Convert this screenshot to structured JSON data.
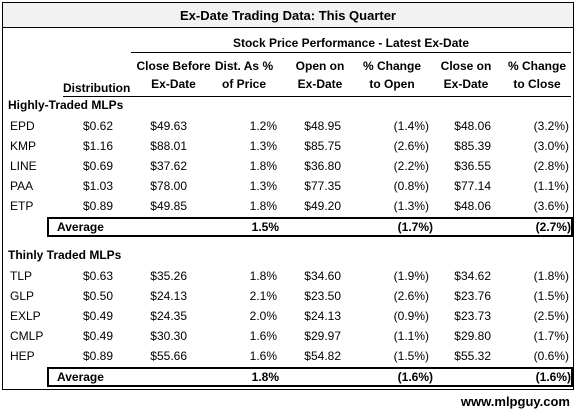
{
  "title": "Ex-Date Trading Data: This Quarter",
  "span_header": "Stock Price Performance - Latest Ex-Date",
  "columns": {
    "distribution": [
      "",
      "Distribution"
    ],
    "close_before": [
      "Close Before",
      "Ex-Date"
    ],
    "dist_pct": [
      "Dist. As %",
      "of Price"
    ],
    "open_on": [
      "Open on",
      "Ex-Date"
    ],
    "pct_open": [
      "% Change",
      "to Open"
    ],
    "close_on": [
      "Close on",
      "Ex-Date"
    ],
    "pct_close": [
      "% Change",
      "to Close"
    ]
  },
  "sections": [
    {
      "label": "Highly-Traded MLPs",
      "rows": [
        {
          "ticker": "EPD",
          "dist": "$0.62",
          "close_before": "$49.63",
          "dist_pct": "1.2%",
          "open": "$48.95",
          "pct_open": "(1.4%)",
          "close_on": "$48.06",
          "pct_close": "(3.2%)"
        },
        {
          "ticker": "KMP",
          "dist": "$1.16",
          "close_before": "$88.01",
          "dist_pct": "1.3%",
          "open": "$85.75",
          "pct_open": "(2.6%)",
          "close_on": "$85.39",
          "pct_close": "(3.0%)"
        },
        {
          "ticker": "LINE",
          "dist": "$0.69",
          "close_before": "$37.62",
          "dist_pct": "1.8%",
          "open": "$36.80",
          "pct_open": "(2.2%)",
          "close_on": "$36.55",
          "pct_close": "(2.8%)"
        },
        {
          "ticker": "PAA",
          "dist": "$1.03",
          "close_before": "$78.00",
          "dist_pct": "1.3%",
          "open": "$77.35",
          "pct_open": "(0.8%)",
          "close_on": "$77.14",
          "pct_close": "(1.1%)"
        },
        {
          "ticker": "ETP",
          "dist": "$0.89",
          "close_before": "$49.85",
          "dist_pct": "1.8%",
          "open": "$49.20",
          "pct_open": "(1.3%)",
          "close_on": "$48.06",
          "pct_close": "(3.6%)"
        }
      ],
      "average": {
        "label": "Average",
        "dist_pct": "1.5%",
        "pct_open": "(1.7%)",
        "pct_close": "(2.7%)"
      }
    },
    {
      "label": "Thinly Traded MLPs",
      "rows": [
        {
          "ticker": "TLP",
          "dist": "$0.63",
          "close_before": "$35.26",
          "dist_pct": "1.8%",
          "open": "$34.60",
          "pct_open": "(1.9%)",
          "close_on": "$34.62",
          "pct_close": "(1.8%)"
        },
        {
          "ticker": "GLP",
          "dist": "$0.50",
          "close_before": "$24.13",
          "dist_pct": "2.1%",
          "open": "$23.50",
          "pct_open": "(2.6%)",
          "close_on": "$23.76",
          "pct_close": "(1.5%)"
        },
        {
          "ticker": "EXLP",
          "dist": "$0.49",
          "close_before": "$24.35",
          "dist_pct": "2.0%",
          "open": "$24.13",
          "pct_open": "(0.9%)",
          "close_on": "$23.73",
          "pct_close": "(2.5%)"
        },
        {
          "ticker": "CMLP",
          "dist": "$0.49",
          "close_before": "$30.30",
          "dist_pct": "1.6%",
          "open": "$29.97",
          "pct_open": "(1.1%)",
          "close_on": "$29.80",
          "pct_close": "(1.7%)"
        },
        {
          "ticker": "HEP",
          "dist": "$0.89",
          "close_before": "$55.66",
          "dist_pct": "1.6%",
          "open": "$54.82",
          "pct_open": "(1.5%)",
          "close_on": "$55.32",
          "pct_close": "(0.6%)"
        }
      ],
      "average": {
        "label": "Average",
        "dist_pct": "1.8%",
        "pct_open": "(1.6%)",
        "pct_close": "(1.6%)"
      }
    }
  ],
  "footer": "www.mlpguy.com"
}
